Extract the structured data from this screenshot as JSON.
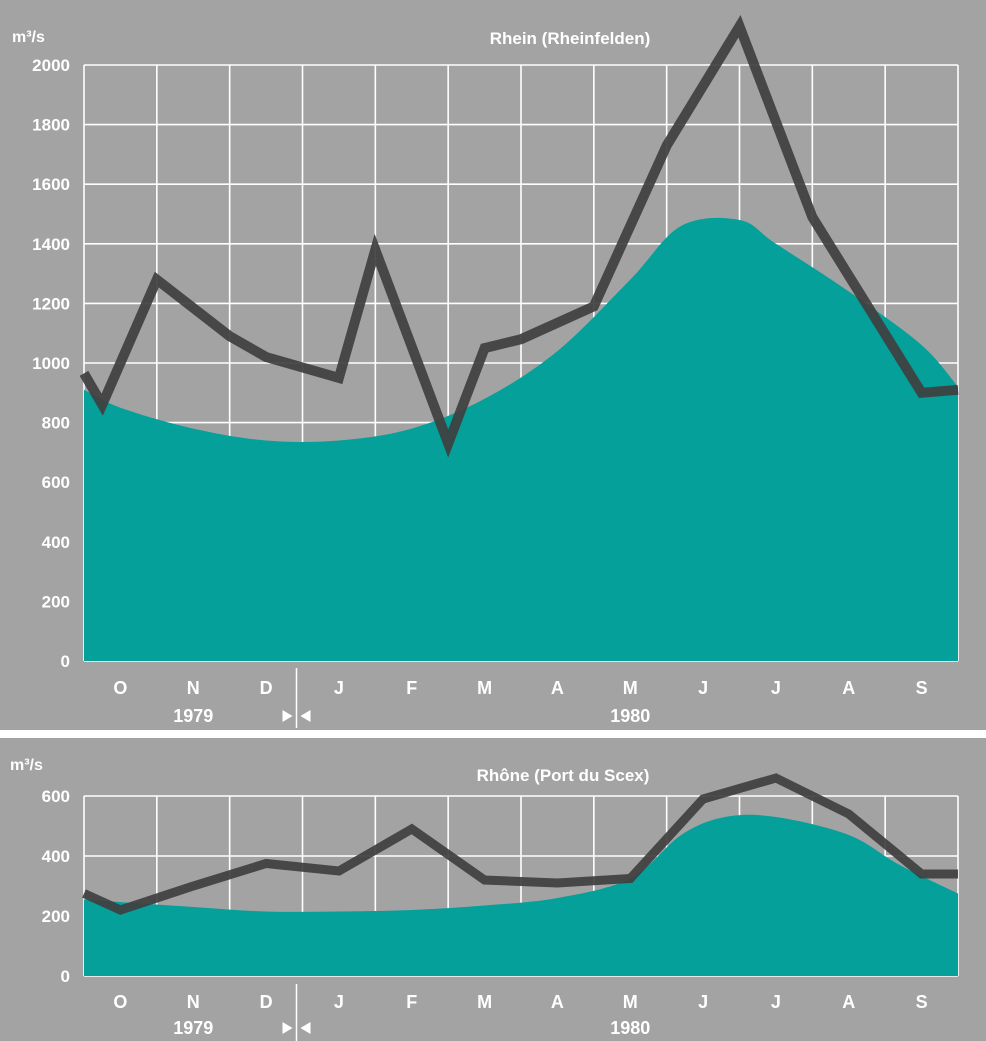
{
  "chart_data": [
    {
      "type": "area",
      "title": "Rhein (Rheinfelden)",
      "ylabel": "m³/s",
      "ylim": [
        0,
        2000
      ],
      "yticks": [
        0,
        200,
        400,
        600,
        800,
        1000,
        1200,
        1400,
        1600,
        1800,
        2000
      ],
      "categories": [
        "O",
        "N",
        "D",
        "J",
        "F",
        "M",
        "A",
        "M",
        "J",
        "J",
        "A",
        "S"
      ],
      "year_labels": [
        "1979",
        "1980"
      ],
      "grid": true,
      "colors": {
        "area": "#06a09b",
        "line": "#3f3f3f",
        "background": "#a3a3a3",
        "grid": "#ffffff"
      },
      "series": [
        {
          "kind": "area",
          "x": [
            0,
            0.5,
            1.5,
            2.5,
            3.5,
            4.5,
            5.5,
            6.5,
            7.5,
            8.2,
            9.0,
            9.5,
            10.5,
            11.5,
            12.0
          ],
          "values": [
            910,
            850,
            780,
            740,
            740,
            780,
            880,
            1040,
            1280,
            1460,
            1480,
            1400,
            1240,
            1060,
            920
          ]
        },
        {
          "kind": "line",
          "x": [
            0,
            0.25,
            1.0,
            2.0,
            2.5,
            3.5,
            4.0,
            5.0,
            5.5,
            6.0,
            7.0,
            8.0,
            9.0,
            10.0,
            11.5,
            12.0
          ],
          "values": [
            965,
            860,
            1280,
            1090,
            1020,
            950,
            1380,
            730,
            1050,
            1080,
            1190,
            1730,
            2130,
            1490,
            900,
            910
          ]
        }
      ]
    },
    {
      "type": "area",
      "title": "Rhône (Port du Scex)",
      "ylabel": "m³/s",
      "ylim": [
        0,
        600
      ],
      "yticks": [
        0,
        200,
        400,
        600
      ],
      "categories": [
        "O",
        "N",
        "D",
        "J",
        "F",
        "M",
        "A",
        "M",
        "J",
        "J",
        "A",
        "S"
      ],
      "year_labels": [
        "1979",
        "1980"
      ],
      "grid": true,
      "colors": {
        "area": "#06a09b",
        "line": "#3f3f3f",
        "background": "#a3a3a3",
        "grid": "#ffffff"
      },
      "series": [
        {
          "kind": "area",
          "x": [
            0,
            1.5,
            2.5,
            3.5,
            4.5,
            5.5,
            6.5,
            7.5,
            8.2,
            8.8,
            9.5,
            10.5,
            11.2,
            12.0
          ],
          "values": [
            255,
            230,
            215,
            215,
            220,
            235,
            260,
            325,
            470,
            530,
            530,
            470,
            370,
            275
          ]
        },
        {
          "kind": "line",
          "x": [
            0,
            0.5,
            1.5,
            2.5,
            3.5,
            4.5,
            5.5,
            6.5,
            7.5,
            8.5,
            9.5,
            10.5,
            11.5,
            12.0
          ],
          "values": [
            275,
            220,
            300,
            375,
            350,
            490,
            320,
            310,
            325,
            590,
            660,
            540,
            340,
            340
          ]
        }
      ]
    }
  ]
}
